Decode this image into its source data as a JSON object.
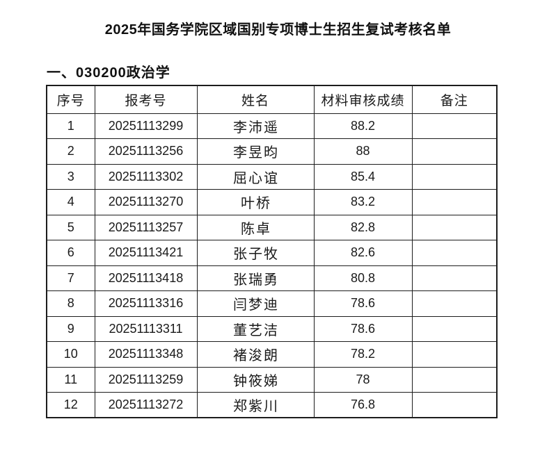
{
  "page": {
    "title": "2025年国务学院区域国别专项博士生招生复试考核名单",
    "section_heading": "一、030200政治学"
  },
  "table": {
    "headers": [
      "序号",
      "报考号",
      "姓名",
      "材料审核成绩",
      "备注"
    ],
    "rows": [
      {
        "no": "1",
        "application_no": "20251113299",
        "name": "李沛遥",
        "score": "88.2",
        "remark": ""
      },
      {
        "no": "2",
        "application_no": "20251113256",
        "name": "李昱昀",
        "score": "88",
        "remark": ""
      },
      {
        "no": "3",
        "application_no": "20251113302",
        "name": "屈心谊",
        "score": "85.4",
        "remark": ""
      },
      {
        "no": "4",
        "application_no": "20251113270",
        "name": "叶桥",
        "score": "83.2",
        "remark": ""
      },
      {
        "no": "5",
        "application_no": "20251113257",
        "name": "陈卓",
        "score": "82.8",
        "remark": ""
      },
      {
        "no": "6",
        "application_no": "20251113421",
        "name": "张子牧",
        "score": "82.6",
        "remark": ""
      },
      {
        "no": "7",
        "application_no": "20251113418",
        "name": "张瑞勇",
        "score": "80.8",
        "remark": ""
      },
      {
        "no": "8",
        "application_no": "20251113316",
        "name": "闫梦迪",
        "score": "78.6",
        "remark": ""
      },
      {
        "no": "9",
        "application_no": "20251113311",
        "name": "董艺洁",
        "score": "78.6",
        "remark": ""
      },
      {
        "no": "10",
        "application_no": "20251113348",
        "name": "褚浚朗",
        "score": "78.2",
        "remark": ""
      },
      {
        "no": "11",
        "application_no": "20251113259",
        "name": "钟筱娣",
        "score": "78",
        "remark": ""
      },
      {
        "no": "12",
        "application_no": "20251113272",
        "name": "郑紫川",
        "score": "76.8",
        "remark": ""
      }
    ]
  }
}
